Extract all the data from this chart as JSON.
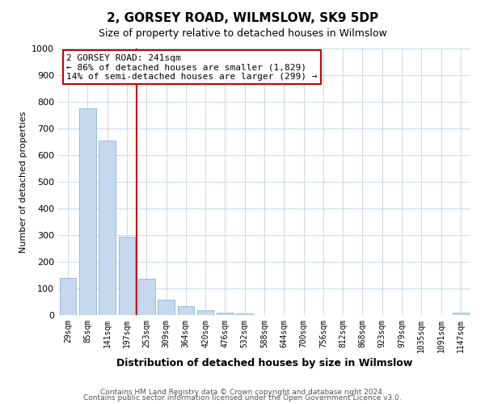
{
  "title": "2, GORSEY ROAD, WILMSLOW, SK9 5DP",
  "subtitle": "Size of property relative to detached houses in Wilmslow",
  "xlabel": "Distribution of detached houses by size in Wilmslow",
  "ylabel": "Number of detached properties",
  "bar_labels": [
    "29sqm",
    "85sqm",
    "141sqm",
    "197sqm",
    "253sqm",
    "309sqm",
    "364sqm",
    "420sqm",
    "476sqm",
    "532sqm",
    "588sqm",
    "644sqm",
    "700sqm",
    "756sqm",
    "812sqm",
    "868sqm",
    "923sqm",
    "979sqm",
    "1035sqm",
    "1091sqm",
    "1147sqm"
  ],
  "bar_values": [
    140,
    775,
    655,
    295,
    135,
    57,
    32,
    18,
    10,
    7,
    0,
    0,
    0,
    0,
    0,
    0,
    0,
    0,
    0,
    0,
    10
  ],
  "bar_color": "#c5d8ee",
  "bar_edge_color": "#8db4d8",
  "property_line_color": "#cc0000",
  "property_line_x": 3.5,
  "annotation_title": "2 GORSEY ROAD: 241sqm",
  "annotation_line1": "← 86% of detached houses are smaller (1,829)",
  "annotation_line2": "14% of semi-detached houses are larger (299) →",
  "annotation_box_color": "#cc0000",
  "ylim": [
    0,
    1000
  ],
  "yticks": [
    0,
    100,
    200,
    300,
    400,
    500,
    600,
    700,
    800,
    900,
    1000
  ],
  "footer1": "Contains HM Land Registry data © Crown copyright and database right 2024.",
  "footer2": "Contains public sector information licensed under the Open Government Licence v3.0.",
  "background_color": "#ffffff",
  "grid_color": "#c8d8eb"
}
